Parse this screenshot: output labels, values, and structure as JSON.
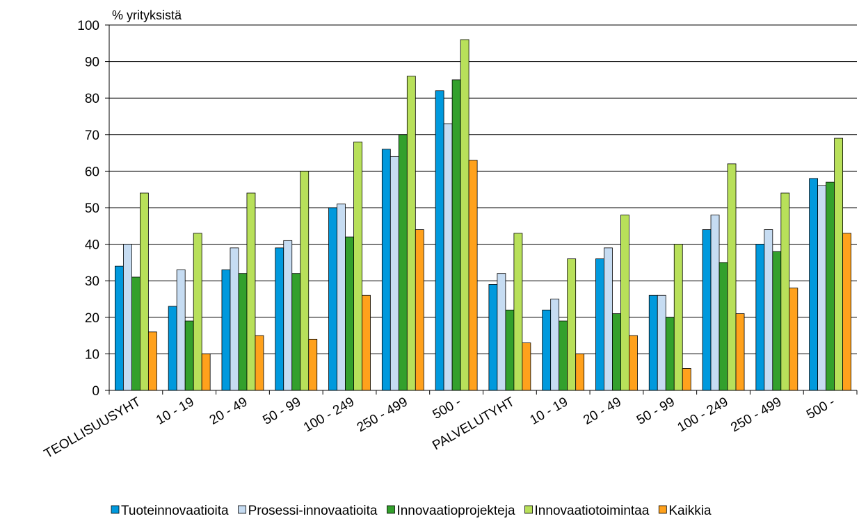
{
  "chart_data": {
    "type": "bar",
    "ylabel": "% yrityksistä",
    "ylim": [
      0,
      100
    ],
    "yticks": [
      "0",
      "10",
      "20",
      "30",
      "40",
      "50",
      "60",
      "70",
      "80",
      "90",
      "100"
    ],
    "grid": true,
    "legend_position": "bottom",
    "categories": [
      "TEOLLISUUSYHT",
      "10 - 19",
      "20 - 49",
      "50 - 99",
      "100 - 249",
      "250 - 499",
      "500 -",
      "PALVELUTYHT",
      "10 - 19",
      "20 - 49",
      "50 - 99",
      "100 - 249",
      "250 - 499",
      "500 -"
    ],
    "series": [
      {
        "name": "Tuoteinnovaatioita",
        "color": "#0099dd",
        "values": [
          34,
          23,
          33,
          39,
          50,
          66,
          82,
          29,
          22,
          36,
          26,
          44,
          40,
          58
        ]
      },
      {
        "name": "Prosessi-innovaatioita",
        "color": "#c6dcf2",
        "values": [
          40,
          33,
          39,
          41,
          51,
          64,
          73,
          32,
          25,
          39,
          26,
          48,
          44,
          56
        ]
      },
      {
        "name": "Innovaatioprojekteja",
        "color": "#33a02c",
        "values": [
          31,
          19,
          32,
          32,
          42,
          70,
          85,
          22,
          19,
          21,
          20,
          35,
          38,
          57
        ]
      },
      {
        "name": "Innovaatiotoimintaa",
        "color": "#b8e05a",
        "values": [
          54,
          43,
          54,
          60,
          68,
          86,
          96,
          43,
          36,
          48,
          40,
          62,
          54,
          69
        ]
      },
      {
        "name": "Kaikkia",
        "color": "#ffa11c",
        "values": [
          16,
          10,
          15,
          14,
          26,
          44,
          63,
          13,
          10,
          15,
          6,
          21,
          28,
          43
        ]
      }
    ]
  }
}
